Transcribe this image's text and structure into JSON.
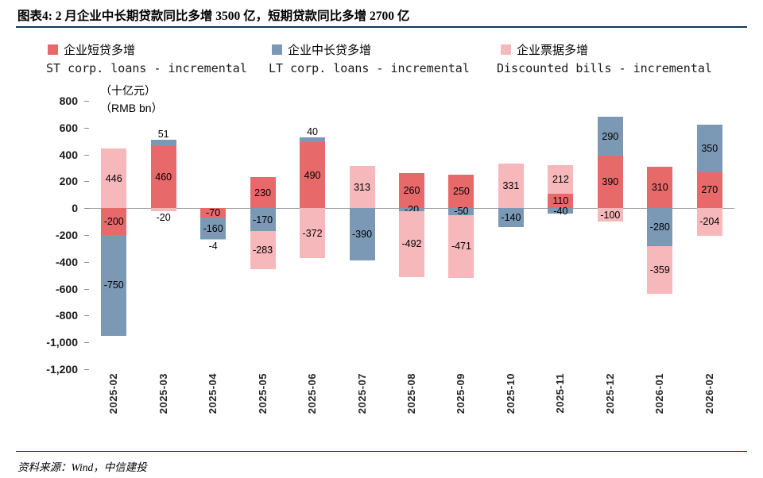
{
  "header": {
    "title": "图表4:  2 月企业中长期贷款同比多增 3500 亿，短期贷款同比多增 2700 亿"
  },
  "footer": {
    "source": "资料来源：Wind，中信建投"
  },
  "chart_data": {
    "type": "stacked-bar",
    "unit_cn": "（十亿元）",
    "unit_en": "（RMB bn）",
    "legend_position": "top",
    "grid": "off",
    "y_axis": {
      "min": -1200,
      "max": 800,
      "tick_step": 200,
      "tick_labels": [
        "800",
        "600",
        "400",
        "200",
        "0",
        "-200",
        "-400",
        "-600",
        "-800",
        "-1,000",
        "-1,200"
      ]
    },
    "zero_line_color": "#a3a3a3",
    "categories": [
      "2025-02",
      "2025-03",
      "2025-04",
      "2025-05",
      "2025-06",
      "2025-07",
      "2025-08",
      "2025-09",
      "2025-10",
      "2025-11",
      "2025-12",
      "2026-01",
      "2026-02"
    ],
    "series": [
      {
        "name": "企业短贷多增",
        "name_en": "ST corp. loans - incremental",
        "color": "#e8696a",
        "values": [
          -200,
          460,
          -70,
          230,
          490,
          0,
          260,
          250,
          null,
          110,
          390,
          310,
          270
        ],
        "labels": [
          "-200",
          "460",
          "-70",
          "230",
          "490",
          "-",
          "260",
          "250",
          null,
          "110",
          "390",
          "310",
          "270"
        ]
      },
      {
        "name": "企业中长贷多增",
        "name_en": "LT corp. loans - incremental",
        "color": "#7b99b5",
        "values": [
          -750,
          51,
          -160,
          -170,
          40,
          -390,
          -20,
          -50,
          -140,
          -40,
          290,
          -280,
          350
        ],
        "labels": [
          "-750",
          "51",
          "-160",
          "-170",
          "40",
          "-390",
          "-20",
          "-50",
          "-140",
          "-40",
          "290",
          "-280",
          "350"
        ]
      },
      {
        "name": "企业票据多增",
        "name_en": "Discounted bills - incremental",
        "color": "#f6b8ba",
        "values": [
          446,
          -20,
          -4,
          -283,
          -372,
          313,
          -492,
          -471,
          331,
          212,
          -100,
          -359,
          -204
        ],
        "labels": [
          "446",
          "-20",
          "-4",
          "-283",
          "-372",
          "313",
          "-492",
          "-471",
          "331",
          "212",
          "-100",
          "-359",
          "-204"
        ]
      }
    ]
  },
  "theme": {
    "rule_color": "#16365c",
    "red": "#e8696a",
    "blue": "#7b99b5",
    "pink": "#f6b8ba"
  }
}
